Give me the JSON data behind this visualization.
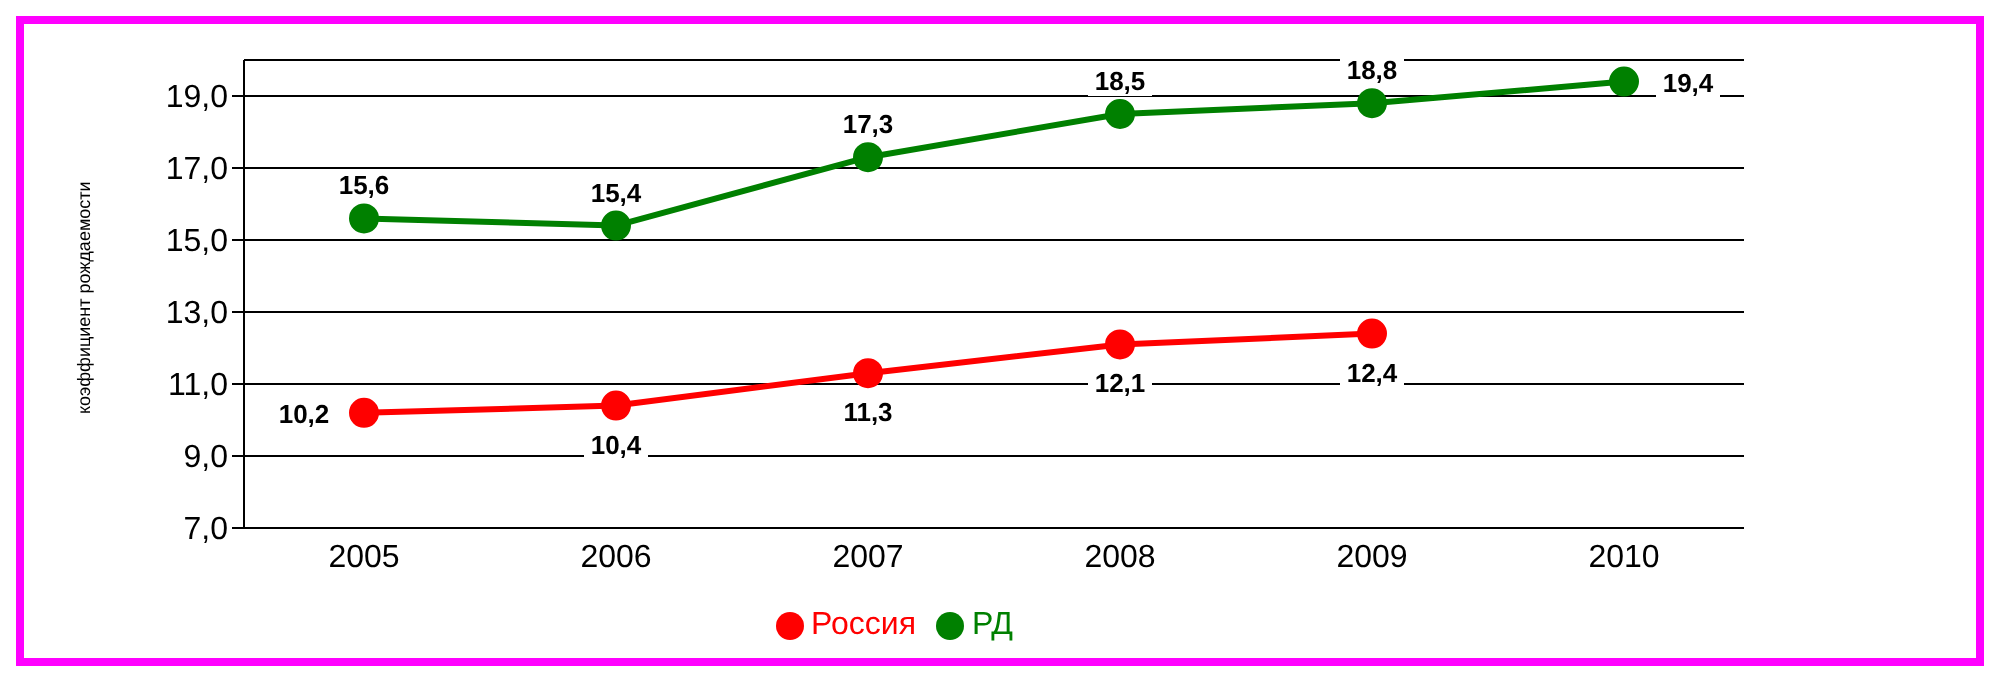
{
  "chart_data": {
    "type": "line",
    "ylabel": "коэффициент рождаемости",
    "categories": [
      "2005",
      "2006",
      "2007",
      "2008",
      "2009",
      "2010"
    ],
    "series": [
      {
        "name": "Россия",
        "color": "#ff0000",
        "values": [
          10.2,
          10.4,
          11.3,
          12.1,
          12.4,
          null
        ],
        "value_labels": [
          "10,2",
          "10,4",
          "11,3",
          "12,1",
          "12,4",
          null
        ]
      },
      {
        "name": "РД",
        "color": "#008000",
        "values": [
          15.6,
          15.4,
          17.3,
          18.5,
          18.8,
          19.4
        ],
        "value_labels": [
          "15,6",
          "15,4",
          "17,3",
          "18,5",
          "18,8",
          "19,4"
        ]
      }
    ],
    "ylim": [
      7,
      20
    ],
    "yticks": [
      {
        "value": 7,
        "label": "7,0"
      },
      {
        "value": 9,
        "label": "9,0"
      },
      {
        "value": 11,
        "label": "11,0"
      },
      {
        "value": 13,
        "label": "13,0"
      },
      {
        "value": 15,
        "label": "15,0"
      },
      {
        "value": 17,
        "label": "17,0"
      },
      {
        "value": 19,
        "label": "19,0"
      }
    ],
    "grid": "y",
    "legend": "bottom",
    "marker": "circle",
    "line_style": "solid"
  }
}
